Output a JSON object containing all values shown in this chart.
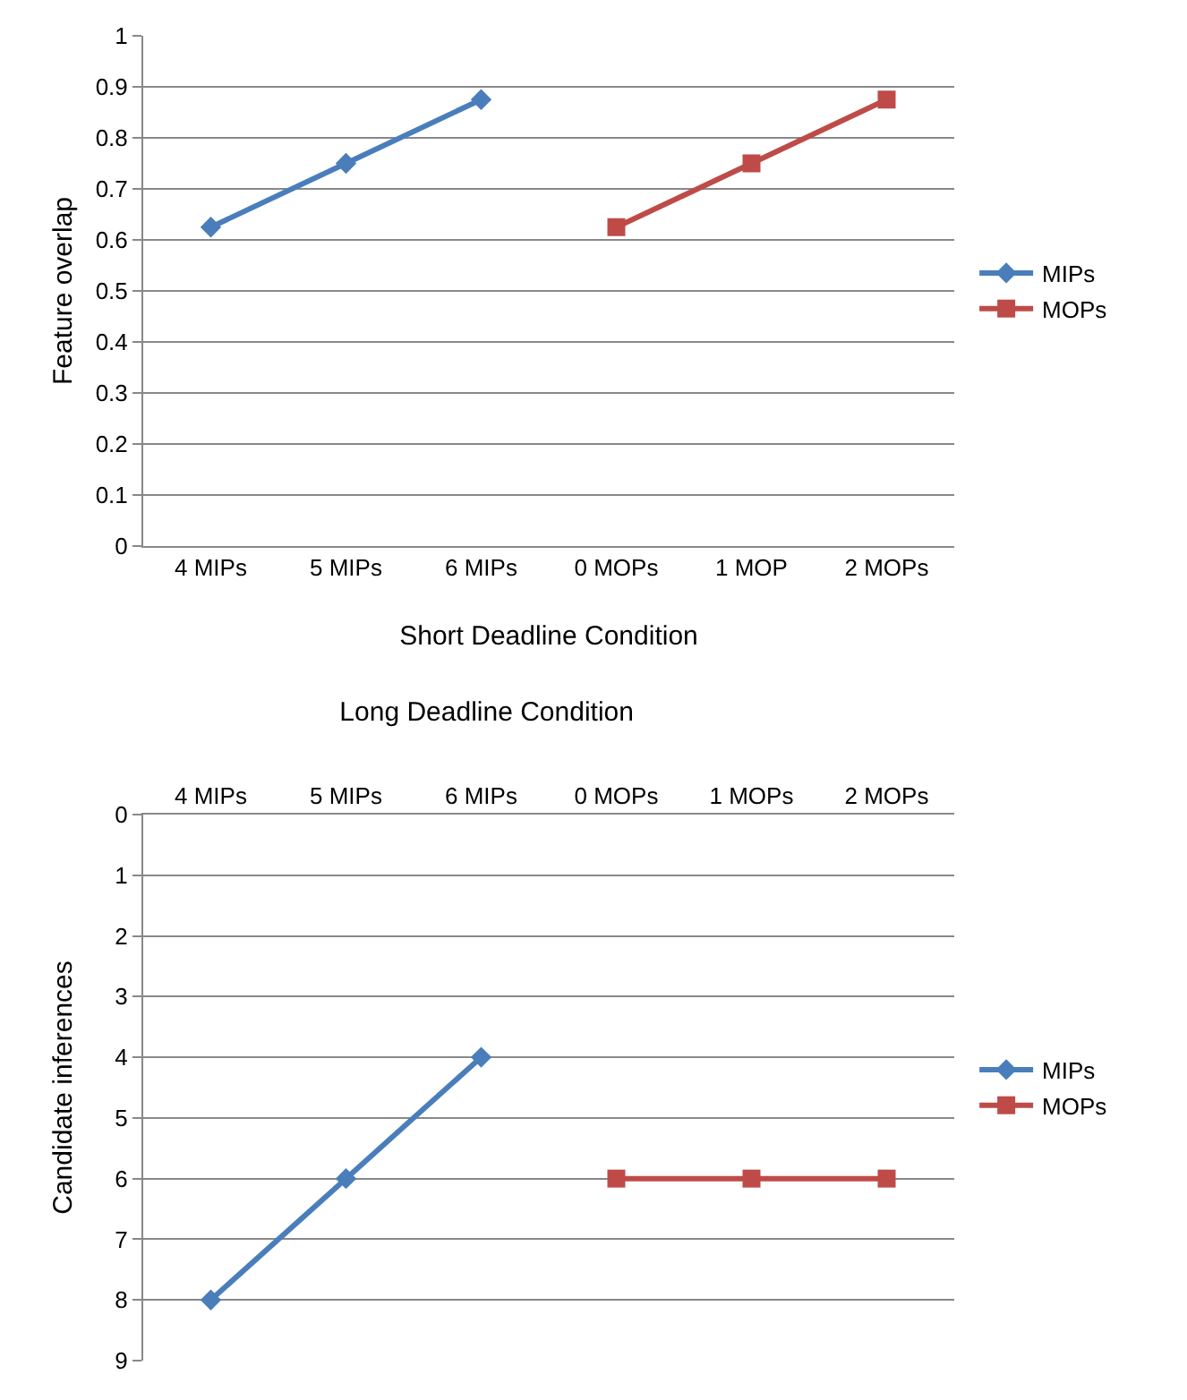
{
  "chart_data": [
    {
      "type": "line",
      "xlabel": "Short Deadline Condition",
      "ylabel": "Feature overlap",
      "categories": [
        "4 MIPs",
        "5 MIPs",
        "6 MIPs",
        "0 MOPs",
        "1 MOP",
        "2 MOPs"
      ],
      "series": [
        {
          "name": "MIPs",
          "color": "#4a7ebb",
          "marker": "diamond",
          "values": [
            0.625,
            0.75,
            0.875,
            null,
            null,
            null
          ]
        },
        {
          "name": "MOPs",
          "color": "#be4b48",
          "marker": "square",
          "values": [
            null,
            null,
            null,
            0.625,
            0.75,
            0.875
          ]
        }
      ],
      "ylim": [
        0,
        1
      ],
      "yticks": [
        0,
        0.1,
        0.2,
        0.3,
        0.4,
        0.5,
        0.6,
        0.7,
        0.8,
        0.9,
        1
      ],
      "grid": "y",
      "legend": "right"
    },
    {
      "type": "line",
      "title": "Long Deadline Condition",
      "ylabel": "Candidate inferences",
      "categories": [
        "4 MIPs",
        "5 MIPs",
        "6 MIPs",
        "0 MOPs",
        "1 MOPs",
        "2 MOPs"
      ],
      "series": [
        {
          "name": "MIPs",
          "color": "#4a7ebb",
          "marker": "diamond",
          "values": [
            8,
            6,
            4,
            null,
            null,
            null
          ]
        },
        {
          "name": "MOPs",
          "color": "#be4b48",
          "marker": "square",
          "values": [
            null,
            null,
            null,
            6,
            6,
            6
          ]
        }
      ],
      "ylim": [
        9,
        0
      ],
      "yticks": [
        0,
        1,
        2,
        3,
        4,
        5,
        6,
        7,
        8,
        9
      ],
      "grid": "y",
      "legend": "right"
    }
  ]
}
